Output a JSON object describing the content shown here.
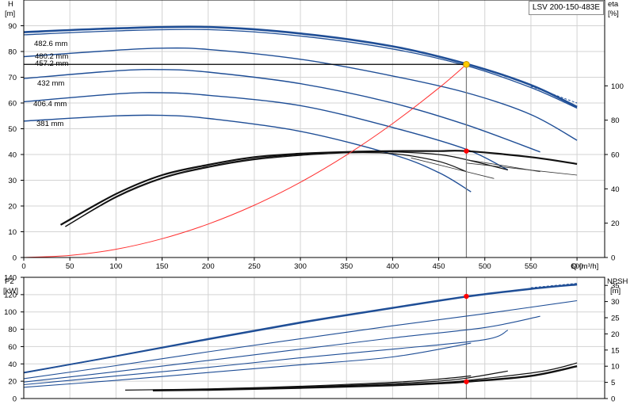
{
  "model_label": "LSV 200-150-483E",
  "chart_data": [
    {
      "type": "line",
      "panel": "head-efficiency",
      "xlabel": "Q [m³/h]",
      "xlim": [
        0,
        630
      ],
      "xticks": [
        0,
        50,
        100,
        150,
        200,
        250,
        300,
        350,
        400,
        450,
        500,
        550,
        600
      ],
      "ylabel_left": [
        "H",
        "[m]"
      ],
      "ylim_left": [
        0,
        100
      ],
      "yticks_left": [
        0,
        10,
        20,
        30,
        40,
        50,
        60,
        70,
        80,
        90
      ],
      "ylabel_right": [
        "eta",
        "[%]"
      ],
      "ylim_right": [
        0,
        150
      ],
      "yticks_right": [
        0,
        20,
        40,
        60,
        80,
        100
      ],
      "grid": true,
      "head_curves": [
        {
          "name": "482.6 mm",
          "x": [
            0,
            100,
            200,
            300,
            400,
            480,
            550,
            600
          ],
          "y": [
            87.5,
            89,
            89.5,
            87,
            82,
            75.2,
            67,
            58.5
          ]
        },
        {
          "name": "480.2 mm",
          "x": [
            0,
            100,
            200,
            300,
            400,
            480,
            550,
            600
          ],
          "y": [
            86.5,
            88,
            88.5,
            86,
            81,
            74.5,
            66,
            58
          ]
        },
        {
          "name": "457.2 mm",
          "x": [
            0,
            100,
            150,
            200,
            300,
            400,
            480,
            550,
            600
          ],
          "y": [
            78,
            80.5,
            81.3,
            80.8,
            77,
            70.5,
            64,
            55.5,
            45.5
          ]
        },
        {
          "name": "432 mm",
          "x": [
            0,
            100,
            150,
            200,
            300,
            400,
            480,
            560
          ],
          "y": [
            69.5,
            72.5,
            73,
            72,
            67.5,
            60,
            51.5,
            41
          ]
        },
        {
          "name": "406.4 mm",
          "x": [
            0,
            100,
            150,
            200,
            300,
            400,
            480,
            525
          ],
          "y": [
            60.5,
            63.5,
            64,
            63,
            59,
            50.5,
            42,
            34
          ]
        },
        {
          "name": "381 mm",
          "x": [
            0,
            100,
            150,
            200,
            300,
            400,
            450,
            485
          ],
          "y": [
            53,
            55,
            55.2,
            54,
            49,
            40,
            33,
            25.5
          ]
        }
      ],
      "efficiency_curves": [
        {
          "x": [
            40,
            100,
            150,
            200,
            250,
            300,
            350,
            400,
            450,
            480,
            550,
            600
          ],
          "y": [
            19,
            37,
            48,
            54,
            58.5,
            60.5,
            61.5,
            62,
            62,
            62,
            58.5,
            54.5
          ]
        },
        {
          "x": [
            45,
            100,
            150,
            200,
            250,
            300,
            350,
            400,
            450,
            480,
            525
          ],
          "y": [
            18,
            35,
            46,
            52.5,
            57,
            59.5,
            61,
            61.5,
            60,
            57,
            51
          ]
        },
        {
          "x": [
            45,
            100,
            150,
            200,
            250,
            300,
            350,
            400,
            450,
            480
          ],
          "y": [
            18,
            35.5,
            46.5,
            53,
            57.5,
            60,
            61,
            60.5,
            56,
            50
          ]
        }
      ],
      "system_curve": {
        "x": [
          0,
          50,
          100,
          150,
          200,
          250,
          300,
          350,
          400,
          450,
          480
        ],
        "y": [
          0,
          0.8,
          3.2,
          7.3,
          13,
          20.3,
          29.2,
          39.8,
          52,
          65.8,
          75
        ]
      },
      "operating_point": {
        "q": 480,
        "h": 75,
        "eta": 62
      }
    },
    {
      "type": "line",
      "panel": "power-npsh",
      "xlim": [
        0,
        630
      ],
      "ylabel_left": [
        "P2",
        "[kW]"
      ],
      "ylim_left": [
        0,
        140
      ],
      "yticks_left": [
        0,
        20,
        40,
        60,
        80,
        100,
        120,
        140
      ],
      "ylabel_right": [
        "NPSH",
        "[m]"
      ],
      "ylim_right": [
        0,
        37.5
      ],
      "yticks_right": [
        0,
        5,
        10,
        15,
        20,
        25,
        30,
        35
      ],
      "grid": true,
      "power_curves": [
        {
          "x": [
            0,
            100,
            200,
            300,
            400,
            480,
            550,
            600
          ],
          "y": [
            30,
            49,
            69,
            88,
            105,
            118,
            127,
            132
          ]
        },
        {
          "x": [
            0,
            100,
            200,
            300,
            400,
            480,
            550,
            600
          ],
          "y": [
            29.5,
            48.5,
            68,
            87,
            104,
            117,
            126,
            131
          ]
        },
        {
          "x": [
            0,
            100,
            200,
            300,
            400,
            500,
            600
          ],
          "y": [
            23,
            38,
            54,
            69,
            84,
            98,
            113
          ]
        },
        {
          "x": [
            0,
            100,
            200,
            300,
            400,
            500,
            560
          ],
          "y": [
            19,
            31,
            44,
            57,
            70,
            82,
            95
          ]
        },
        {
          "x": [
            0,
            100,
            200,
            300,
            400,
            500,
            525
          ],
          "y": [
            16,
            26,
            36,
            47,
            57,
            68,
            79
          ]
        },
        {
          "x": [
            0,
            100,
            200,
            300,
            400,
            485
          ],
          "y": [
            13,
            21,
            30,
            39,
            48,
            64
          ]
        }
      ],
      "npsh_curves": [
        {
          "x": [
            140,
            200,
            300,
            400,
            450,
            480,
            550,
            600
          ],
          "y": [
            2.5,
            2.7,
            3.3,
            4.1,
            4.7,
            5.2,
            7,
            10
          ]
        },
        {
          "x": [
            140,
            200,
            300,
            400,
            450,
            480,
            560,
            600
          ],
          "y": [
            2.6,
            2.8,
            3.4,
            4.3,
            4.9,
            5.6,
            8.3,
            11
          ]
        },
        {
          "x": [
            140,
            200,
            300,
            400,
            450,
            480,
            525
          ],
          "y": [
            2.7,
            2.9,
            3.6,
            4.6,
            5.4,
            6.3,
            8.5
          ]
        },
        {
          "x": [
            110,
            200,
            300,
            400,
            450,
            485
          ],
          "y": [
            2.6,
            3,
            3.8,
            5,
            6,
            7
          ]
        }
      ],
      "operating_point": {
        "q": 480,
        "p2": 118,
        "npsh": 5.2
      }
    }
  ]
}
